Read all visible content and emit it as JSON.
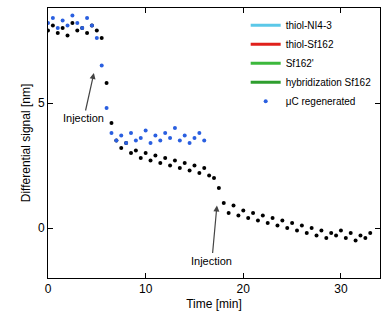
{
  "chart_data": {
    "type": "scatter",
    "x_label": "Time [min]",
    "y_label": "Differential signal [nm]",
    "xlim": [
      0,
      34
    ],
    "xticks": [
      0,
      10,
      20,
      30
    ],
    "ylim": [
      -2,
      8.8
    ],
    "yticks": [
      0,
      5
    ],
    "grid": false,
    "legend": "top right",
    "legend_entries": [
      {
        "name": "thiol-NI4-3",
        "color": "#5bc8e8",
        "type": "line"
      },
      {
        "name": "thiol-Sf162",
        "color": "#e0201b",
        "type": "line"
      },
      {
        "name": "Sf162'",
        "color": "#3cb83c",
        "type": "line"
      },
      {
        "name": "hybridization Sf162",
        "color": "#2e9e2e",
        "type": "line"
      }
    ],
    "series": [
      {
        "color": "#000000",
        "marker": "circle",
        "x": [
          0,
          0.5,
          1,
          1.5,
          2,
          2.5,
          3,
          3.5,
          4,
          4.5,
          5,
          5.5,
          6,
          6.5,
          7,
          7.5,
          8,
          8.5,
          9,
          9.5,
          10,
          10.5,
          11,
          11.5,
          12,
          12.5,
          13,
          13.5,
          14,
          14.5,
          15,
          15.5,
          16,
          16.5,
          17,
          17.5,
          18,
          18.5,
          19,
          19.5,
          20,
          20.5,
          21,
          21.5,
          22,
          22.5,
          23,
          23.5,
          24,
          24.5,
          25,
          25.5,
          26,
          26.5,
          27,
          27.5,
          28,
          28.5,
          29,
          29.5,
          30,
          30.5,
          31,
          31.5,
          32,
          32.5,
          33
        ],
        "values": [
          7.9,
          8.1,
          7.8,
          8.0,
          7.7,
          8.2,
          7.9,
          8.0,
          7.8,
          8.1,
          7.9,
          7.6,
          5.8,
          4.2,
          3.5,
          3.2,
          3.4,
          3.0,
          3.1,
          2.8,
          3.0,
          2.7,
          2.9,
          2.6,
          2.8,
          2.5,
          2.7,
          2.4,
          2.6,
          2.3,
          2.5,
          2.2,
          2.4,
          2.1,
          2.0,
          1.6,
          1.0,
          0.6,
          0.9,
          0.5,
          0.7,
          0.4,
          0.6,
          0.3,
          0.5,
          0.2,
          0.4,
          0.1,
          0.3,
          0.0,
          0.2,
          -0.1,
          0.1,
          -0.2,
          0.0,
          -0.3,
          -0.1,
          -0.4,
          -0.2,
          -0.3,
          -0.1,
          -0.4,
          -0.2,
          -0.5,
          -0.3,
          -0.4,
          -0.2
        ]
      },
      {
        "name": "μC regenerated",
        "color": "#2a5fe0",
        "marker": "circle",
        "x": [
          0,
          0.5,
          1,
          1.5,
          2,
          2.5,
          3,
          3.5,
          4,
          4.5,
          5,
          5.5,
          6,
          6.5,
          7,
          7.5,
          8,
          8.5,
          9,
          9.5,
          10,
          10.5,
          11,
          11.5,
          12,
          12.5,
          13,
          13.5,
          14,
          14.5,
          15,
          15.5,
          16
        ],
        "values": [
          8.2,
          8.4,
          8.0,
          8.3,
          8.1,
          8.5,
          8.2,
          8.0,
          8.4,
          8.1,
          7.6,
          6.5,
          4.8,
          3.8,
          3.5,
          3.7,
          3.4,
          3.8,
          3.5,
          3.6,
          3.9,
          3.4,
          3.7,
          3.5,
          3.8,
          3.6,
          4.0,
          3.5,
          3.7,
          3.4,
          3.6,
          3.8,
          3.5
        ]
      }
    ],
    "annotations": [
      {
        "text": "Injection",
        "x": 4.7,
        "y": 6.2
      },
      {
        "text": "Injection",
        "x": 17.3,
        "y": 0.9
      }
    ]
  }
}
